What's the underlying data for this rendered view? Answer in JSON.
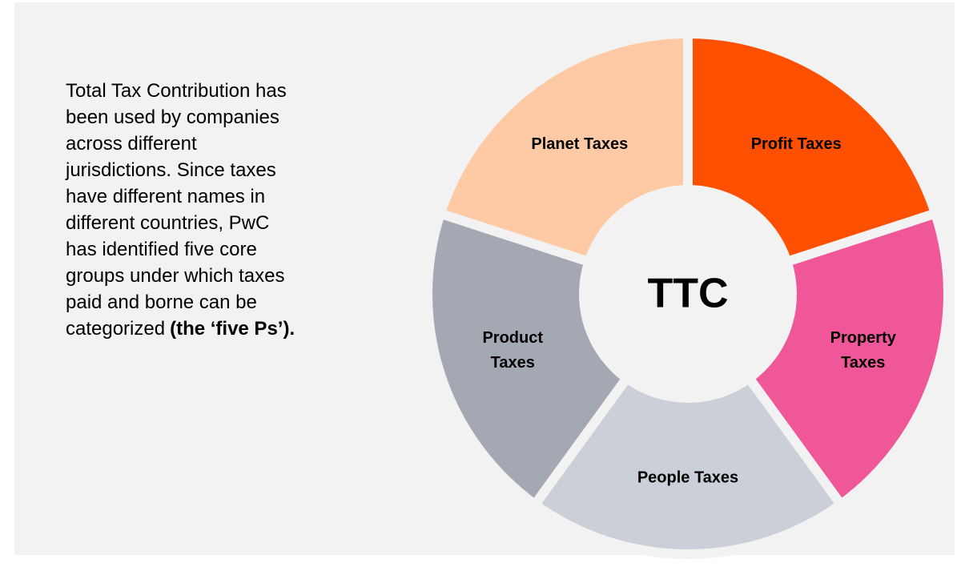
{
  "text": {
    "lines": [
      "Total Tax Contribution has",
      "been used by companies",
      "across different",
      "jurisdictions. Since taxes",
      "have different names in",
      "different countries, PwC",
      "has identified five core",
      "groups under which taxes",
      "paid and borne can be",
      "categorized"
    ],
    "emphasis": "(the ‘five Ps’)."
  },
  "diagram": {
    "center": "TTC",
    "segments": [
      {
        "label": [
          "Profit Taxes"
        ],
        "color": "#fe5000"
      },
      {
        "label": [
          "Property",
          "Taxes"
        ],
        "color": "#ef5799"
      },
      {
        "label": [
          "People Taxes"
        ],
        "color": "#cbd0d8"
      },
      {
        "label": [
          "Product",
          "Taxes"
        ],
        "color": "#a3a8b3"
      },
      {
        "label": [
          "Planet Taxes"
        ],
        "color": "#fecaa5"
      }
    ]
  }
}
